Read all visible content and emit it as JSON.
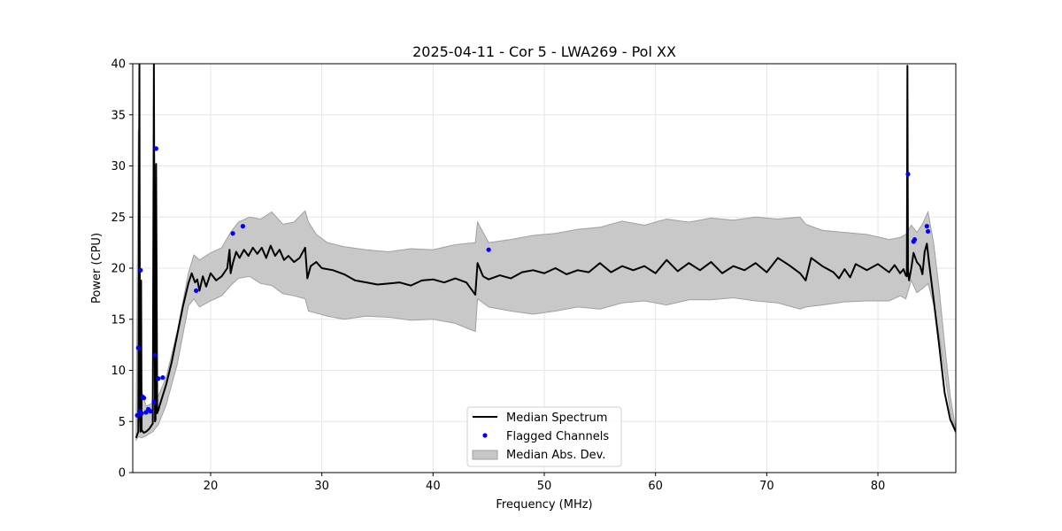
{
  "chart_data": {
    "type": "line",
    "title": "2025-04-11 - Cor 5 - LWA269 - Pol XX",
    "xlabel": "Frequency (MHz)",
    "ylabel": "Power (CPU)",
    "xlim": [
      13,
      87
    ],
    "ylim": [
      0,
      40
    ],
    "xticks": [
      20,
      30,
      40,
      50,
      60,
      70,
      80
    ],
    "yticks": [
      0,
      5,
      10,
      15,
      20,
      25,
      30,
      35,
      40
    ],
    "grid": true,
    "legend_position": "bottom-center",
    "colors": {
      "median": "#000000",
      "flagged": "#0000ff",
      "mad_fill": "#c8c8c8",
      "mad_edge": "#a0a0a0"
    },
    "series": [
      {
        "name": "Median Spectrum",
        "kind": "line",
        "x": [
          13.3,
          13.5,
          13.6,
          13.65,
          13.7,
          13.75,
          13.8,
          13.9,
          14.0,
          14.2,
          14.5,
          14.8,
          14.9,
          15.0,
          15.05,
          15.1,
          15.2,
          15.25,
          15.3,
          15.4,
          15.6,
          16.0,
          16.5,
          17.0,
          17.5,
          18.0,
          18.3,
          18.6,
          18.8,
          19.0,
          19.3,
          19.6,
          20.0,
          20.5,
          21.0,
          21.5,
          21.7,
          21.8,
          22.0,
          22.3,
          22.6,
          23.0,
          23.4,
          23.8,
          24.2,
          24.6,
          25.0,
          25.4,
          25.8,
          26.2,
          26.6,
          27.0,
          27.5,
          28.0,
          28.5,
          28.7,
          29.0,
          29.5,
          30.0,
          31.0,
          32.0,
          33.0,
          34.0,
          35.0,
          36.0,
          37.0,
          38.0,
          39.0,
          40.0,
          41.0,
          42.0,
          43.0,
          43.8,
          44.0,
          44.5,
          45.0,
          46.0,
          47.0,
          48.0,
          49.0,
          50.0,
          51.0,
          52.0,
          53.0,
          54.0,
          55.0,
          56.0,
          57.0,
          58.0,
          59.0,
          60.0,
          61.0,
          62.0,
          63.0,
          64.0,
          65.0,
          66.0,
          67.0,
          68.0,
          69.0,
          70.0,
          71.0,
          72.0,
          73.0,
          73.5,
          74.0,
          75.0,
          76.0,
          76.5,
          77.0,
          77.5,
          78.0,
          79.0,
          80.0,
          81.0,
          81.5,
          82.0,
          82.3,
          82.5,
          82.6,
          82.65,
          82.7,
          82.8,
          83.0,
          83.2,
          83.5,
          83.8,
          84.0,
          84.2,
          84.4,
          84.6,
          85.0,
          85.5,
          86.0,
          86.5,
          87.0
        ],
        "y": [
          3.4,
          4.0,
          40.0,
          6.0,
          4.0,
          18.8,
          4.2,
          4.0,
          3.9,
          4.0,
          4.3,
          4.8,
          40.0,
          5.0,
          5.2,
          30.2,
          5.8,
          6.0,
          6.1,
          6.5,
          7.2,
          8.6,
          10.8,
          13.5,
          16.2,
          18.5,
          19.5,
          18.6,
          18.9,
          17.8,
          19.2,
          18.2,
          19.5,
          18.8,
          19.2,
          20.0,
          21.8,
          19.5,
          20.5,
          21.6,
          21.0,
          21.8,
          21.2,
          22.0,
          21.4,
          22.0,
          21.0,
          22.2,
          21.2,
          21.8,
          20.8,
          21.2,
          20.6,
          21.0,
          22.0,
          19.0,
          20.2,
          20.6,
          20.0,
          19.8,
          19.4,
          18.8,
          18.6,
          18.4,
          18.5,
          18.6,
          18.3,
          18.8,
          18.9,
          18.6,
          19.0,
          18.6,
          17.4,
          20.5,
          19.2,
          18.9,
          19.3,
          19.0,
          19.6,
          19.8,
          19.5,
          20.0,
          19.4,
          19.8,
          19.6,
          20.5,
          19.6,
          20.2,
          19.8,
          20.2,
          19.5,
          20.8,
          19.7,
          20.5,
          19.8,
          20.6,
          19.5,
          20.2,
          19.8,
          20.5,
          19.6,
          21.0,
          20.3,
          19.5,
          18.8,
          21.0,
          20.2,
          19.6,
          19.0,
          19.9,
          19.1,
          20.4,
          19.8,
          20.4,
          19.6,
          20.3,
          19.5,
          19.9,
          19.3,
          19.2,
          39.8,
          19.8,
          18.8,
          20.0,
          21.5,
          20.6,
          20.2,
          19.4,
          21.6,
          22.4,
          20.5,
          17.0,
          12.5,
          7.8,
          5.2,
          4.0
        ]
      },
      {
        "name": "Flagged Channels",
        "kind": "scatter",
        "x": [
          13.4,
          13.5,
          13.6,
          13.7,
          13.8,
          13.9,
          14.0,
          14.2,
          14.4,
          14.6,
          14.9,
          15.0,
          15.1,
          15.3,
          15.7,
          18.7,
          22.0,
          22.9,
          45.0,
          82.7,
          83.2,
          83.3,
          84.4,
          84.5
        ],
        "y": [
          5.6,
          12.2,
          6.0,
          19.8,
          5.8,
          7.4,
          7.3,
          5.9,
          6.2,
          6.0,
          6.9,
          11.5,
          31.7,
          9.2,
          9.3,
          17.8,
          23.4,
          24.1,
          21.8,
          29.2,
          22.6,
          22.8,
          24.1,
          23.6
        ]
      },
      {
        "name": "Median Abs. Dev.",
        "kind": "band",
        "x": [
          13.3,
          13.5,
          13.8,
          14.2,
          14.8,
          15.3,
          16.0,
          17.0,
          18.0,
          18.5,
          19.0,
          20.0,
          21.0,
          21.8,
          22.5,
          23.5,
          24.5,
          25.5,
          26.5,
          27.5,
          28.5,
          28.8,
          29.5,
          30.5,
          32.0,
          34.0,
          36.0,
          38.0,
          40.0,
          42.0,
          43.8,
          44.0,
          45.0,
          47.0,
          49.0,
          51.0,
          53.0,
          55.0,
          57.0,
          59.0,
          61.0,
          63.0,
          65.0,
          67.0,
          69.0,
          71.0,
          73.0,
          73.5,
          75.0,
          77.0,
          79.0,
          81.0,
          82.0,
          82.5,
          83.0,
          83.5,
          84.0,
          84.5,
          85.0,
          85.5,
          86.0,
          86.5,
          87.0
        ],
        "upper": [
          3.6,
          33.5,
          8.0,
          6.5,
          6.8,
          7.5,
          9.3,
          13.8,
          19.5,
          21.3,
          20.8,
          21.5,
          22.0,
          23.5,
          24.5,
          25.0,
          24.8,
          25.5,
          24.3,
          24.5,
          25.6,
          24.5,
          23.3,
          22.5,
          22.1,
          21.8,
          21.6,
          21.9,
          21.8,
          22.3,
          22.5,
          24.5,
          22.5,
          22.8,
          23.2,
          23.4,
          23.8,
          24.0,
          24.6,
          24.2,
          24.8,
          24.5,
          24.9,
          24.7,
          25.0,
          24.8,
          25.0,
          24.3,
          23.7,
          23.5,
          23.3,
          22.8,
          23.0,
          23.3,
          24.2,
          23.5,
          24.3,
          25.5,
          22.5,
          18.0,
          12.5,
          7.5,
          4.2
        ],
        "lower": [
          3.2,
          3.5,
          3.4,
          3.6,
          4.0,
          4.7,
          6.6,
          10.6,
          16.3,
          17.0,
          16.2,
          16.8,
          17.3,
          18.3,
          19.0,
          19.2,
          18.5,
          18.3,
          17.5,
          17.3,
          17.0,
          15.8,
          15.6,
          15.3,
          15.0,
          15.3,
          15.2,
          14.9,
          15.0,
          14.6,
          13.8,
          17.0,
          16.2,
          15.8,
          15.5,
          15.8,
          16.2,
          16.0,
          16.6,
          16.8,
          16.4,
          16.9,
          16.9,
          17.1,
          16.8,
          16.6,
          16.0,
          16.2,
          16.4,
          16.7,
          16.8,
          16.8,
          17.3,
          17.0,
          18.8,
          17.6,
          18.0,
          18.5,
          16.5,
          13.5,
          9.8,
          6.0,
          3.8
        ]
      }
    ]
  }
}
